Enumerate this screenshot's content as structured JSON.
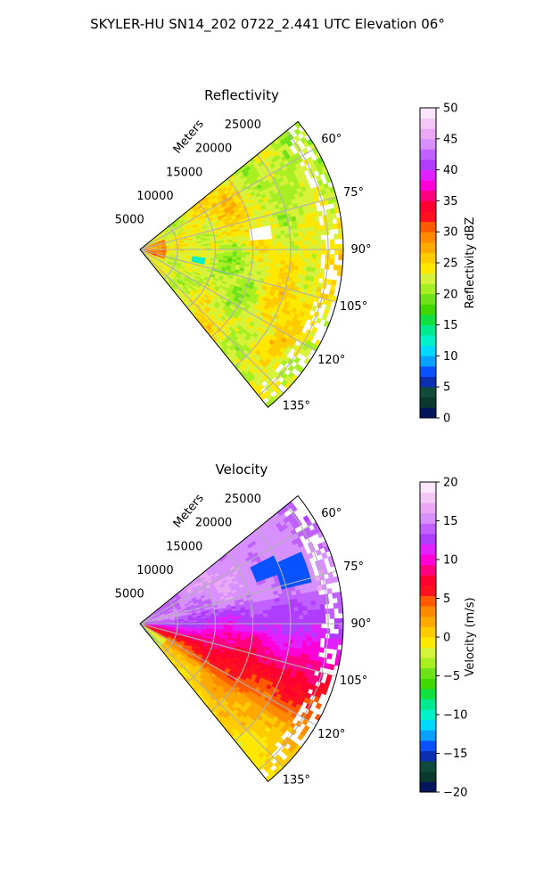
{
  "figure_title": "SKYLER-HU  SN14_202  0722_2.441 UTC Elevation 06°",
  "chart_data": [
    {
      "type": "heatmap",
      "panel": "polar-sector",
      "title": "Reflectivity",
      "radial_label": "Meters",
      "radial_ticks": [
        5000,
        10000,
        15000,
        20000,
        25000
      ],
      "radial_tick_labels": [
        "5000",
        "10000",
        "15000",
        "20000",
        "25000"
      ],
      "rlim": [
        0,
        27000
      ],
      "azimuth_range_deg": [
        51,
        141
      ],
      "azimuth_ticks": [
        60,
        75,
        90,
        105,
        120,
        135
      ],
      "azimuth_tick_labels": [
        "60°",
        "75°",
        "90°",
        "105°",
        "120°",
        "135°"
      ],
      "grid": true,
      "colorbar": {
        "label": "Reflectivity dBZ",
        "min": 0,
        "max": 50,
        "ticks": [
          0,
          5,
          10,
          15,
          20,
          25,
          30,
          35,
          40,
          45,
          50
        ],
        "tick_labels": [
          "0",
          "5",
          "10",
          "15",
          "20",
          "25",
          "30",
          "35",
          "40",
          "45",
          "50"
        ],
        "colors": [
          "#02155e",
          "#0a3a2e",
          "#0f4a3a",
          "#0b2fb0",
          "#0a52ff",
          "#0aa0ff",
          "#00d8ff",
          "#00f0c8",
          "#00e890",
          "#10e040",
          "#40d800",
          "#6ee21a",
          "#a8ef22",
          "#d6f23a",
          "#ffe800",
          "#ffcc00",
          "#ffa800",
          "#ff8a00",
          "#ff5a00",
          "#ff1020",
          "#ff0030",
          "#ff0080",
          "#ff00d8",
          "#e020ff",
          "#b03cff",
          "#c060ff",
          "#d890ff",
          "#eaa8f5",
          "#f3c8f6",
          "#fbe6fb"
        ]
      },
      "value_summary": {
        "dominant_range_dBZ": [
          18,
          30
        ],
        "max_observed_dBZ": 34,
        "low_pockets_dBZ": [
          10,
          15
        ]
      }
    },
    {
      "type": "heatmap",
      "panel": "polar-sector",
      "title": "Velocity",
      "radial_label": "Meters",
      "radial_ticks": [
        5000,
        10000,
        15000,
        20000,
        25000
      ],
      "radial_tick_labels": [
        "5000",
        "10000",
        "15000",
        "20000",
        "25000"
      ],
      "rlim": [
        0,
        27000
      ],
      "azimuth_range_deg": [
        51,
        141
      ],
      "azimuth_ticks": [
        60,
        75,
        90,
        105,
        120,
        135
      ],
      "azimuth_tick_labels": [
        "60°",
        "75°",
        "90°",
        "105°",
        "120°",
        "135°"
      ],
      "grid": true,
      "colorbar": {
        "label": "Velocity (m/s)",
        "min": -20,
        "max": 20,
        "ticks": [
          -20,
          -15,
          -10,
          -5,
          0,
          5,
          10,
          15,
          20
        ],
        "tick_labels": [
          "−20",
          "−15",
          "−10",
          "−5",
          "0",
          "5",
          "10",
          "15",
          "20"
        ],
        "colors": [
          "#02155e",
          "#0a3a2e",
          "#0f4a3a",
          "#0b2fb0",
          "#0a52ff",
          "#0aa0ff",
          "#00d8ff",
          "#00f0c8",
          "#00e890",
          "#10e040",
          "#40d800",
          "#6ee21a",
          "#a8ef22",
          "#d6f23a",
          "#ffe800",
          "#ffcc00",
          "#ffa800",
          "#ff8a00",
          "#ff5a00",
          "#ff1020",
          "#ff0030",
          "#ff0080",
          "#ff00d8",
          "#e020ff",
          "#b03cff",
          "#c060ff",
          "#d890ff",
          "#eaa8f5",
          "#f3c8f6",
          "#fbe6fb"
        ]
      },
      "value_summary": {
        "north_sector_m_s": 15,
        "east_sector_m_s": 11,
        "southeast_sector_m_s": 6,
        "south_sector_m_s": 1,
        "folded_patches_m_s": -14
      }
    }
  ]
}
